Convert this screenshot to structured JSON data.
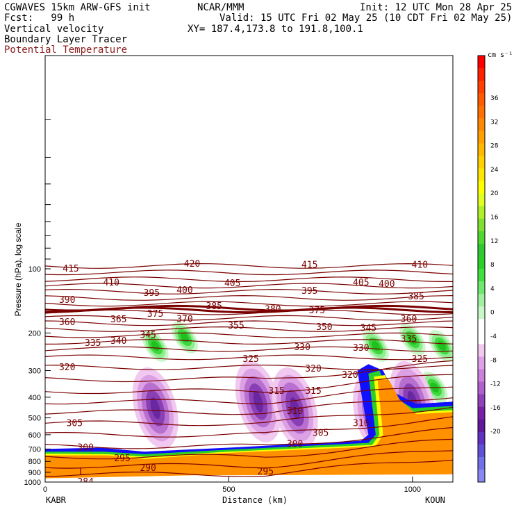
{
  "header": {
    "model": "CGWAVES 15km ARW-GFS init",
    "org": "NCAR/MMM",
    "init": "Init: 12 UTC Mon 28 Apr 25",
    "fcst_label": "Fcst:   99 h",
    "valid": "Valid: 15 UTC Fri 02 May 25 (10 CDT Fri 02 May 25)",
    "field1": "Vertical velocity",
    "field2": "Boundary Layer Tracer",
    "field3": "Potential Temperature",
    "xy": "XY= 187.4,173.8 to 191.8,100.1"
  },
  "colors": {
    "theta_line": "#7a0000",
    "terrain_fill": "#ff9000",
    "tracer_edge_blue": "#1010ff",
    "green": "#2fd21e",
    "purple": "#7a1fa2"
  },
  "chart_data": {
    "type": "cross-section",
    "title": "",
    "xlabel": "Distance (km)",
    "ylabel": "Pressure (hPa), log scale",
    "x_range": [
      0,
      1110
    ],
    "x_ticks": [
      "0",
      "500",
      "1000"
    ],
    "y_scale": "log",
    "y_range_hPa": [
      1000,
      10
    ],
    "y_ticks": [
      "100",
      "200",
      "300",
      "400",
      "500",
      "600",
      "700",
      "800",
      "900",
      "1000"
    ],
    "left_endpoint": "KABR",
    "right_endpoint": "KOUN",
    "colorbar": {
      "unit": "cm s⁻¹",
      "labels": [
        "36",
        "32",
        "28",
        "24",
        "20",
        "16",
        "12",
        "8",
        "4",
        "0",
        "-4",
        "-8",
        "-12",
        "-16",
        "-20"
      ],
      "colors": [
        "#ff0000",
        "#ff2000",
        "#ff4000",
        "#ff5a00",
        "#ff7000",
        "#ff8800",
        "#ffa000",
        "#ffb800",
        "#ffd000",
        "#ffe800",
        "#ffff00",
        "#e0ff20",
        "#b0f028",
        "#80e030",
        "#50d830",
        "#30c830",
        "#28d028",
        "#40e040",
        "#70e870",
        "#a0f0a0",
        "#c8f8c8",
        "#ffffff",
        "#ffffff",
        "#f0c8f0",
        "#e0a0e8",
        "#cc80dc",
        "#b060cc",
        "#9040b8",
        "#7820a8",
        "#601898",
        "#6030c0",
        "#6050d8",
        "#7070e8",
        "#8888f0"
      ]
    },
    "theta_labels": [
      {
        "t": "415",
        "x": 70,
        "p": 100
      },
      {
        "t": "420",
        "x": 400,
        "p": 95
      },
      {
        "t": "415",
        "x": 720,
        "p": 96
      },
      {
        "t": "410",
        "x": 1020,
        "p": 96
      },
      {
        "t": "410",
        "x": 180,
        "p": 116
      },
      {
        "t": "405",
        "x": 510,
        "p": 117
      },
      {
        "t": "405",
        "x": 860,
        "p": 116
      },
      {
        "t": "400",
        "x": 930,
        "p": 118
      },
      {
        "t": "390",
        "x": 60,
        "p": 140
      },
      {
        "t": "395",
        "x": 290,
        "p": 130
      },
      {
        "t": "400",
        "x": 380,
        "p": 126
      },
      {
        "t": "395",
        "x": 720,
        "p": 127
      },
      {
        "t": "385",
        "x": 1010,
        "p": 135
      },
      {
        "t": "385",
        "x": 460,
        "p": 150
      },
      {
        "t": "380",
        "x": 620,
        "p": 155
      },
      {
        "t": "375",
        "x": 740,
        "p": 157
      },
      {
        "t": "375",
        "x": 300,
        "p": 163
      },
      {
        "t": "370",
        "x": 380,
        "p": 172
      },
      {
        "t": "365",
        "x": 200,
        "p": 173
      },
      {
        "t": "360",
        "x": 60,
        "p": 178
      },
      {
        "t": "360",
        "x": 990,
        "p": 172
      },
      {
        "t": "355",
        "x": 520,
        "p": 185
      },
      {
        "t": "350",
        "x": 760,
        "p": 188
      },
      {
        "t": "345",
        "x": 880,
        "p": 190
      },
      {
        "t": "345",
        "x": 280,
        "p": 205
      },
      {
        "t": "340",
        "x": 200,
        "p": 218
      },
      {
        "t": "335",
        "x": 130,
        "p": 223
      },
      {
        "t": "335",
        "x": 990,
        "p": 213
      },
      {
        "t": "330",
        "x": 700,
        "p": 233
      },
      {
        "t": "330",
        "x": 860,
        "p": 235
      },
      {
        "t": "325",
        "x": 560,
        "p": 265
      },
      {
        "t": "325",
        "x": 1020,
        "p": 265
      },
      {
        "t": "320",
        "x": 60,
        "p": 290
      },
      {
        "t": "320",
        "x": 730,
        "p": 295
      },
      {
        "t": "320",
        "x": 830,
        "p": 315
      },
      {
        "t": "315",
        "x": 630,
        "p": 375
      },
      {
        "t": "315",
        "x": 730,
        "p": 375
      },
      {
        "t": "310",
        "x": 680,
        "p": 465
      },
      {
        "t": "310",
        "x": 860,
        "p": 530
      },
      {
        "t": "305",
        "x": 80,
        "p": 530
      },
      {
        "t": "305",
        "x": 750,
        "p": 590
      },
      {
        "t": "300",
        "x": 110,
        "p": 690
      },
      {
        "t": "300",
        "x": 680,
        "p": 665
      },
      {
        "t": "295",
        "x": 210,
        "p": 775
      },
      {
        "t": "290",
        "x": 280,
        "p": 860
      },
      {
        "t": "295",
        "x": 600,
        "p": 895
      },
      {
        "t": "L",
        "x": 100,
        "p": 900
      },
      {
        "t": "284",
        "x": 110,
        "p": 1000
      }
    ],
    "vv_positive_centers_km": [
      [
        300,
        230
      ],
      [
        380,
        210
      ],
      [
        900,
        230
      ],
      [
        1000,
        215
      ],
      [
        1080,
        230
      ],
      [
        900,
        340
      ],
      [
        1060,
        360
      ]
    ],
    "vv_negative_centers_km": [
      [
        300,
        450
      ],
      [
        580,
        420
      ],
      [
        680,
        450
      ],
      [
        900,
        480
      ],
      [
        1000,
        420
      ]
    ]
  }
}
